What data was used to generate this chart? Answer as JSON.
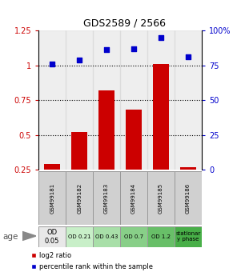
{
  "title": "GDS2589 / 2566",
  "categories": [
    "GSM99181",
    "GSM99182",
    "GSM99183",
    "GSM99184",
    "GSM99185",
    "GSM99186"
  ],
  "bar_values": [
    0.29,
    0.52,
    0.82,
    0.68,
    1.01,
    0.27
  ],
  "point_values_pct": [
    76,
    79,
    86,
    87,
    95,
    81
  ],
  "bar_color": "#cc0000",
  "point_color": "#0000cc",
  "ylim_left": [
    0.25,
    1.25
  ],
  "ylim_right": [
    0,
    100
  ],
  "yticks_left": [
    0.25,
    0.5,
    0.75,
    1.0,
    1.25
  ],
  "ytick_labels_left": [
    "0.25",
    "0.5",
    "0.75",
    "1",
    "1.25"
  ],
  "yticks_right": [
    0,
    25,
    50,
    75,
    100
  ],
  "ytick_labels_right": [
    "0",
    "25",
    "50",
    "75",
    "100%"
  ],
  "hlines": [
    0.5,
    0.75,
    1.0
  ],
  "age_label": "age",
  "age_sublabels": [
    "OD\n0.05",
    "OD 0.21",
    "OD 0.43",
    "OD 0.7",
    "OD 1.2",
    "stationar\ny phase"
  ],
  "age_colors": [
    "#e8e8e8",
    "#c8efc8",
    "#a8dfa8",
    "#88cf88",
    "#68bf68",
    "#48af48"
  ],
  "bar_label": "log2 ratio",
  "point_label": "percentile rank within the sample",
  "gsm_bg_color": "#d0d0d0",
  "bar_bottom": 0.0
}
